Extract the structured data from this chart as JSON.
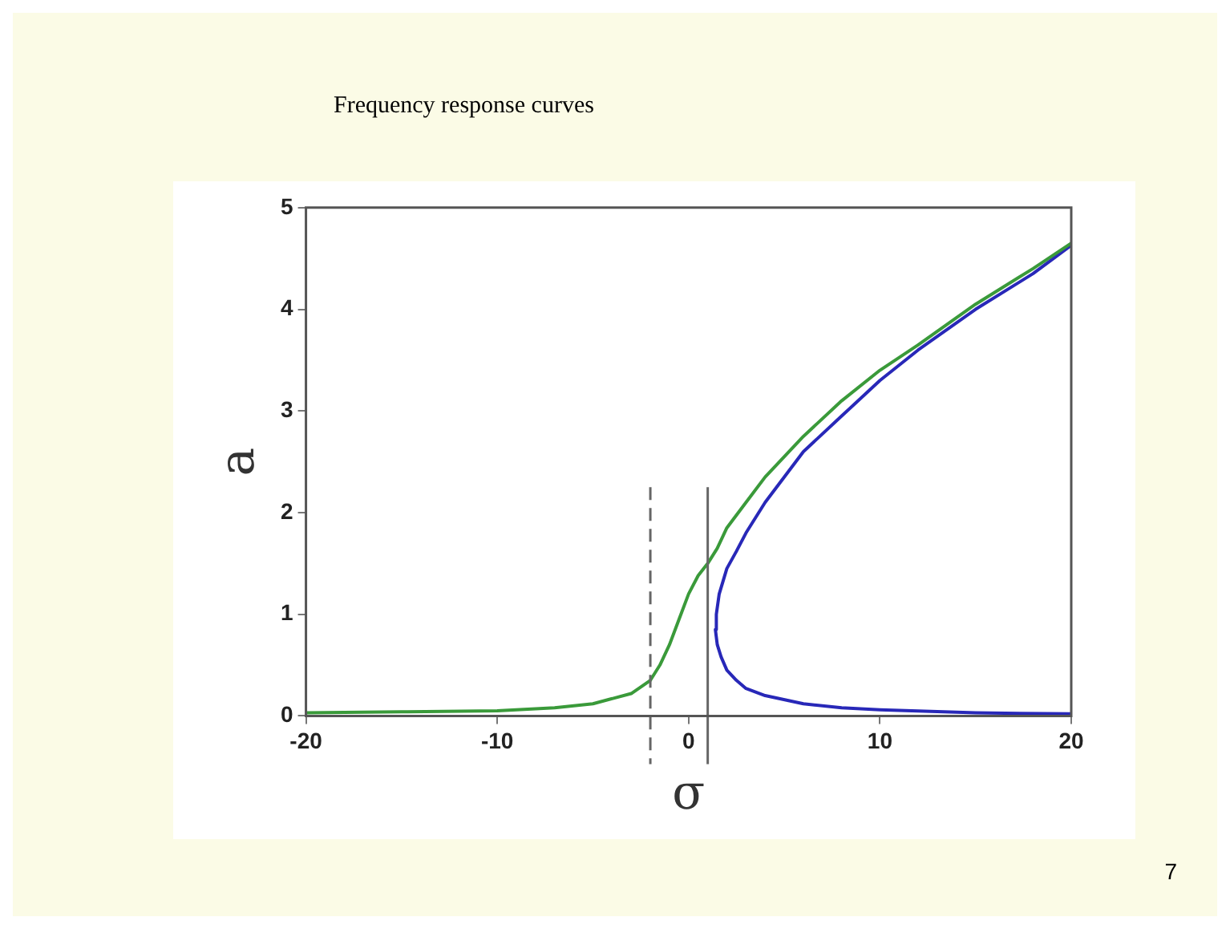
{
  "chart_data": {
    "type": "line",
    "title": "Frequency response curves",
    "xlabel": "σ",
    "ylabel": "a",
    "annotations": [
      "7"
    ],
    "xlim": [
      -20,
      20
    ],
    "xticks": [
      -20,
      -10,
      0,
      10,
      20
    ],
    "ylim": [
      0,
      5
    ],
    "yticks": [
      0,
      1,
      2,
      3,
      4,
      5
    ],
    "grid": false,
    "legend": false,
    "marker": "none",
    "line_style": "solid",
    "ref_lines": [
      {
        "axis": "x",
        "value": -2,
        "color": "#666666",
        "line_style": "dashed"
      },
      {
        "axis": "x",
        "value": 1,
        "color": "#666666",
        "line_style": "solid"
      }
    ],
    "series": [
      {
        "color": "#3a9a3a",
        "x": [
          -20,
          -15,
          -10,
          -7,
          -5,
          -3,
          -2,
          -1.5,
          -1,
          -0.5,
          0,
          0.5,
          1,
          1.5,
          2,
          3,
          4,
          6,
          8,
          10,
          12,
          15,
          18,
          20
        ],
        "values": [
          0.03,
          0.04,
          0.05,
          0.08,
          0.12,
          0.22,
          0.35,
          0.5,
          0.7,
          0.95,
          1.2,
          1.38,
          1.5,
          1.65,
          1.85,
          2.1,
          2.35,
          2.75,
          3.1,
          3.4,
          3.65,
          4.05,
          4.4,
          4.65
        ]
      },
      {
        "color": "#2828b8",
        "x": [
          20,
          15,
          10,
          8,
          6,
          4,
          3,
          2.5,
          2,
          1.7,
          1.5,
          1.4,
          1.45,
          1.6,
          2,
          2.5,
          3,
          4,
          6,
          8,
          10,
          12,
          15,
          18,
          20
        ],
        "values": [
          0.02,
          0.03,
          0.06,
          0.08,
          0.12,
          0.2,
          0.27,
          0.35,
          0.45,
          0.58,
          0.7,
          0.85,
          1.0,
          1.2,
          1.45,
          1.62,
          1.8,
          2.1,
          2.6,
          2.95,
          3.3,
          3.6,
          4.0,
          4.35,
          4.63
        ]
      }
    ]
  }
}
